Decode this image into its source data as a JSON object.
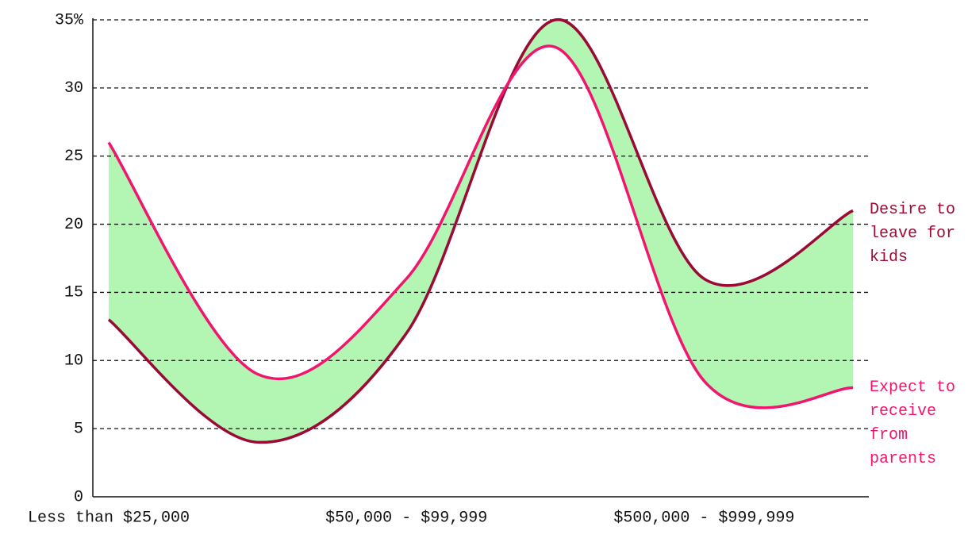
{
  "chart_data": {
    "type": "line",
    "categories": [
      "Less than $25,000",
      null,
      "$50,000 - $99,999",
      null,
      "$500,000 - $999,999",
      null
    ],
    "series": [
      {
        "name": "Desire to leave for kids",
        "color": "#9b0a35",
        "values": [
          13,
          4,
          12,
          35,
          16,
          21
        ]
      },
      {
        "name": "Expect to receive from parents",
        "color": "#f0156e",
        "values": [
          26,
          9,
          16,
          33,
          8.5,
          8
        ]
      }
    ],
    "band_color": "#b3f5b3",
    "ylim": [
      0,
      35
    ],
    "yticks": [
      0,
      5,
      10,
      15,
      20,
      25,
      30,
      {
        "value": 35,
        "label": "35%"
      }
    ],
    "grid": true
  }
}
